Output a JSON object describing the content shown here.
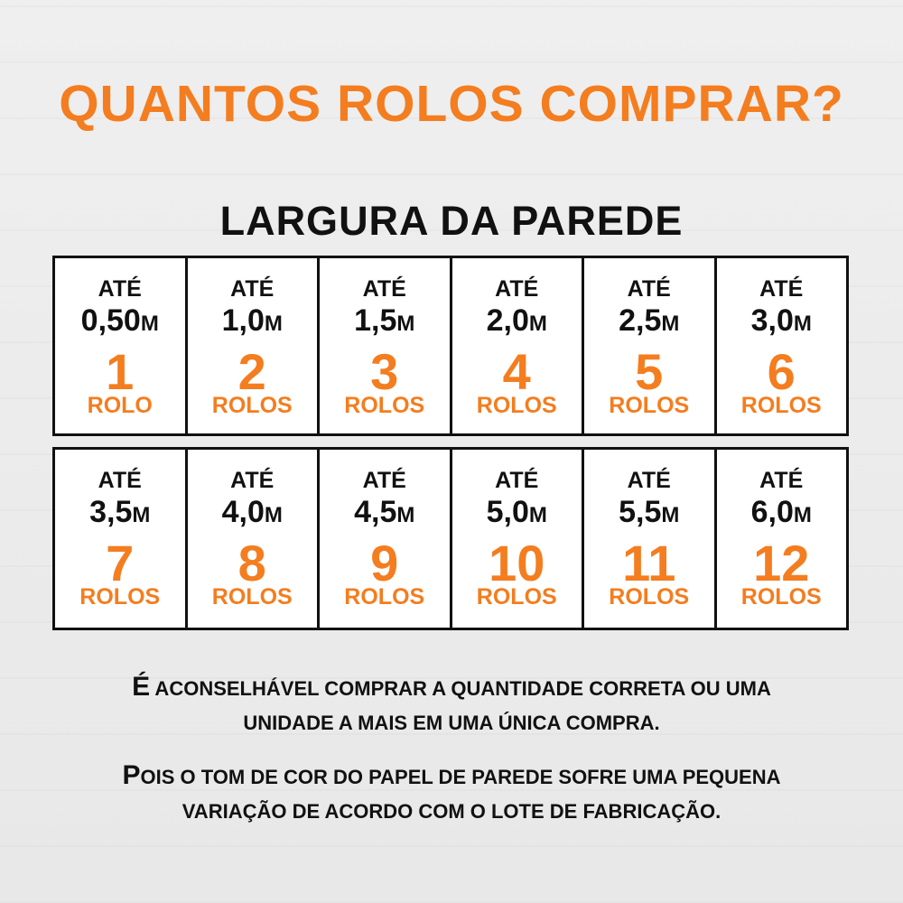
{
  "title": "QUANTOS ROLOS COMPRAR?",
  "subtitle": "LARGURA DA PAREDE",
  "colors": {
    "accent": "#f47d1f",
    "text": "#111111",
    "background": "#ebebeb"
  },
  "rows": [
    [
      {
        "prefix": "ATÉ",
        "width": "0,50",
        "unit": "M",
        "rolls": "1",
        "label": "ROLO"
      },
      {
        "prefix": "ATÉ",
        "width": "1,0",
        "unit": "M",
        "rolls": "2",
        "label": "ROLOS"
      },
      {
        "prefix": "ATÉ",
        "width": "1,5",
        "unit": "M",
        "rolls": "3",
        "label": "ROLOS"
      },
      {
        "prefix": "ATÉ",
        "width": "2,0",
        "unit": "M",
        "rolls": "4",
        "label": "ROLOS"
      },
      {
        "prefix": "ATÉ",
        "width": "2,5",
        "unit": "M",
        "rolls": "5",
        "label": "ROLOS"
      },
      {
        "prefix": "ATÉ",
        "width": "3,0",
        "unit": "M",
        "rolls": "6",
        "label": "ROLOS"
      }
    ],
    [
      {
        "prefix": "ATÉ",
        "width": "3,5",
        "unit": "M",
        "rolls": "7",
        "label": "ROLOS"
      },
      {
        "prefix": "ATÉ",
        "width": "4,0",
        "unit": "M",
        "rolls": "8",
        "label": "ROLOS"
      },
      {
        "prefix": "ATÉ",
        "width": "4,5",
        "unit": "M",
        "rolls": "9",
        "label": "ROLOS"
      },
      {
        "prefix": "ATÉ",
        "width": "5,0",
        "unit": "M",
        "rolls": "10",
        "label": "ROLOS"
      },
      {
        "prefix": "ATÉ",
        "width": "5,5",
        "unit": "M",
        "rolls": "11",
        "label": "ROLOS"
      },
      {
        "prefix": "ATÉ",
        "width": "6,0",
        "unit": "M",
        "rolls": "12",
        "label": "ROLOS"
      }
    ]
  ],
  "notes": [
    {
      "first": "É",
      "line1": " ACONSELHÁVEL COMPRAR A QUANTIDADE CORRETA OU UMA",
      "line2": "UNIDADE A MAIS EM UMA ÚNICA COMPRA."
    },
    {
      "first": "P",
      "line1": "OIS O TOM DE COR DO PAPEL DE PAREDE SOFRE UMA PEQUENA",
      "line2": "VARIAÇÃO DE ACORDO COM O LOTE DE FABRICAÇÃO."
    }
  ]
}
